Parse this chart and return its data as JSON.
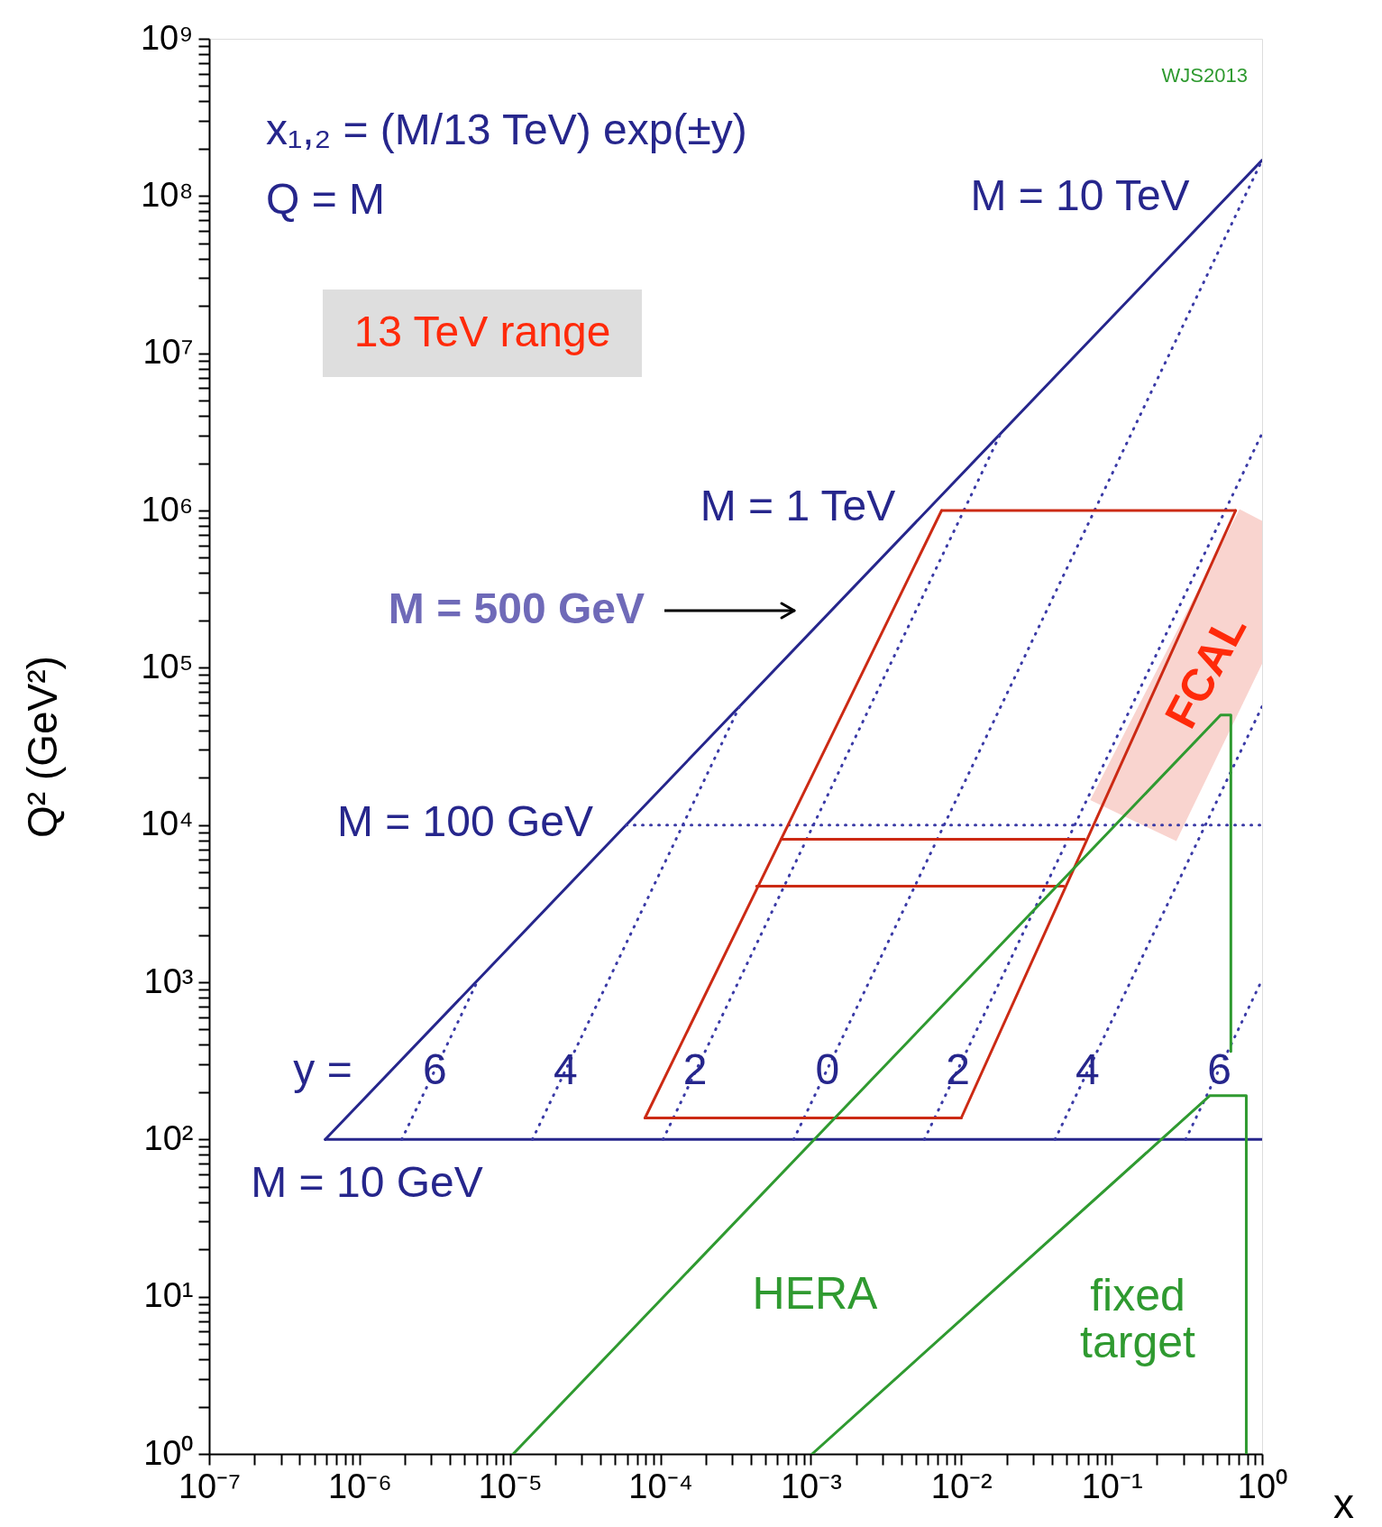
{
  "chart_data": {
    "type": "line",
    "xlabel": "x",
    "ylabel": "Q² (GeV²)",
    "log": "xy",
    "xlim": [
      1e-07,
      1
    ],
    "ylim": [
      1,
      1000000000.0
    ],
    "xticks": [
      {
        "value": 1e-07,
        "label": "10⁻⁷"
      },
      {
        "value": 2e-07,
        "label": null
      },
      {
        "value": 3e-07,
        "label": null
      },
      {
        "value": 4e-07,
        "label": null
      },
      {
        "value": 5e-07,
        "label": null
      },
      {
        "value": 6e-07,
        "label": null
      },
      {
        "value": 7e-07,
        "label": null
      },
      {
        "value": 8e-07,
        "label": null
      },
      {
        "value": 9e-07,
        "label": null
      },
      {
        "value": 1e-06,
        "label": "10⁻⁶"
      },
      {
        "value": 2e-06,
        "label": null
      },
      {
        "value": 3e-06,
        "label": null
      },
      {
        "value": 4e-06,
        "label": null
      },
      {
        "value": 5e-06,
        "label": null
      },
      {
        "value": 6e-06,
        "label": null
      },
      {
        "value": 7e-06,
        "label": null
      },
      {
        "value": 8e-06,
        "label": null
      },
      {
        "value": 9e-06,
        "label": null
      },
      {
        "value": 1e-05,
        "label": "10⁻⁵"
      },
      {
        "value": 2e-05,
        "label": null
      },
      {
        "value": 3e-05,
        "label": null
      },
      {
        "value": 4e-05,
        "label": null
      },
      {
        "value": 5e-05,
        "label": null
      },
      {
        "value": 6e-05,
        "label": null
      },
      {
        "value": 7e-05,
        "label": null
      },
      {
        "value": 8e-05,
        "label": null
      },
      {
        "value": 9e-05,
        "label": null
      },
      {
        "value": 0.0001,
        "label": "10⁻⁴"
      },
      {
        "value": 0.0002,
        "label": null
      },
      {
        "value": 0.0003,
        "label": null
      },
      {
        "value": 0.0004,
        "label": null
      },
      {
        "value": 0.0005,
        "label": null
      },
      {
        "value": 0.0006,
        "label": null
      },
      {
        "value": 0.0007,
        "label": null
      },
      {
        "value": 0.0008,
        "label": null
      },
      {
        "value": 0.0009,
        "label": null
      },
      {
        "value": 0.001,
        "label": "10⁻³"
      },
      {
        "value": 0.002,
        "label": null
      },
      {
        "value": 0.003,
        "label": null
      },
      {
        "value": 0.004,
        "label": null
      },
      {
        "value": 0.005,
        "label": null
      },
      {
        "value": 0.006,
        "label": null
      },
      {
        "value": 0.007,
        "label": null
      },
      {
        "value": 0.008,
        "label": null
      },
      {
        "value": 0.009,
        "label": null
      },
      {
        "value": 0.01,
        "label": "10⁻²"
      },
      {
        "value": 0.02,
        "label": null
      },
      {
        "value": 0.03,
        "label": null
      },
      {
        "value": 0.04,
        "label": null
      },
      {
        "value": 0.05,
        "label": null
      },
      {
        "value": 0.06,
        "label": null
      },
      {
        "value": 0.07,
        "label": null
      },
      {
        "value": 0.08,
        "label": null
      },
      {
        "value": 0.09,
        "label": null
      },
      {
        "value": 0.1,
        "label": "10⁻¹"
      },
      {
        "value": 0.2,
        "label": null
      },
      {
        "value": 0.3,
        "label": null
      },
      {
        "value": 0.4,
        "label": null
      },
      {
        "value": 0.5,
        "label": null
      },
      {
        "value": 0.6,
        "label": null
      },
      {
        "value": 0.7,
        "label": null
      },
      {
        "value": 0.8,
        "label": null
      },
      {
        "value": 0.9,
        "label": null
      },
      {
        "value": 1,
        "label": "10⁰"
      }
    ],
    "yticks": [
      {
        "value": 1,
        "label": "10⁰"
      },
      {
        "value": 2,
        "label": null
      },
      {
        "value": 3,
        "label": null
      },
      {
        "value": 4,
        "label": null
      },
      {
        "value": 5,
        "label": null
      },
      {
        "value": 6,
        "label": null
      },
      {
        "value": 7,
        "label": null
      },
      {
        "value": 8,
        "label": null
      },
      {
        "value": 9,
        "label": null
      },
      {
        "value": 10.0,
        "label": "10¹"
      },
      {
        "value": 20.0,
        "label": null
      },
      {
        "value": 30.0,
        "label": null
      },
      {
        "value": 40.0,
        "label": null
      },
      {
        "value": 50.0,
        "label": null
      },
      {
        "value": 60.0,
        "label": null
      },
      {
        "value": 70.0,
        "label": null
      },
      {
        "value": 80.0,
        "label": null
      },
      {
        "value": 90.0,
        "label": null
      },
      {
        "value": 100.0,
        "label": "10²"
      },
      {
        "value": 200.0,
        "label": null
      },
      {
        "value": 300.0,
        "label": null
      },
      {
        "value": 400.0,
        "label": null
      },
      {
        "value": 500.0,
        "label": null
      },
      {
        "value": 600.0,
        "label": null
      },
      {
        "value": 700.0,
        "label": null
      },
      {
        "value": 800.0,
        "label": null
      },
      {
        "value": 900.0,
        "label": null
      },
      {
        "value": 1000.0,
        "label": "10³"
      },
      {
        "value": 2000.0,
        "label": null
      },
      {
        "value": 3000.0,
        "label": null
      },
      {
        "value": 4000.0,
        "label": null
      },
      {
        "value": 5000.0,
        "label": null
      },
      {
        "value": 6000.0,
        "label": null
      },
      {
        "value": 7000.0,
        "label": null
      },
      {
        "value": 8000.0,
        "label": null
      },
      {
        "value": 9000.0,
        "label": null
      },
      {
        "value": 10000.0,
        "label": "10⁴"
      },
      {
        "value": 20000.0,
        "label": null
      },
      {
        "value": 30000.0,
        "label": null
      },
      {
        "value": 40000.0,
        "label": null
      },
      {
        "value": 50000.0,
        "label": null
      },
      {
        "value": 60000.0,
        "label": null
      },
      {
        "value": 70000.0,
        "label": null
      },
      {
        "value": 80000.0,
        "label": null
      },
      {
        "value": 90000.0,
        "label": null
      },
      {
        "value": 100000.0,
        "label": "10⁵"
      },
      {
        "value": 200000.0,
        "label": null
      },
      {
        "value": 300000.0,
        "label": null
      },
      {
        "value": 400000.0,
        "label": null
      },
      {
        "value": 500000.0,
        "label": null
      },
      {
        "value": 600000.0,
        "label": null
      },
      {
        "value": 700000.0,
        "label": null
      },
      {
        "value": 800000.0,
        "label": null
      },
      {
        "value": 900000.0,
        "label": null
      },
      {
        "value": 1000000.0,
        "label": "10⁶"
      },
      {
        "value": 2000000.0,
        "label": null
      },
      {
        "value": 3000000.0,
        "label": null
      },
      {
        "value": 4000000.0,
        "label": null
      },
      {
        "value": 5000000.0,
        "label": null
      },
      {
        "value": 6000000.0,
        "label": null
      },
      {
        "value": 7000000.0,
        "label": null
      },
      {
        "value": 8000000.0,
        "label": null
      },
      {
        "value": 9000000.0,
        "label": null
      },
      {
        "value": 10000000.0,
        "label": "10⁷"
      },
      {
        "value": 20000000.0,
        "label": null
      },
      {
        "value": 30000000.0,
        "label": null
      },
      {
        "value": 40000000.0,
        "label": null
      },
      {
        "value": 50000000.0,
        "label": null
      },
      {
        "value": 60000000.0,
        "label": null
      },
      {
        "value": 70000000.0,
        "label": null
      },
      {
        "value": 80000000.0,
        "label": null
      },
      {
        "value": 90000000.0,
        "label": null
      },
      {
        "value": 100000000.0,
        "label": "10⁸"
      },
      {
        "value": 200000000.0,
        "label": null
      },
      {
        "value": 300000000.0,
        "label": null
      },
      {
        "value": 400000000.0,
        "label": null
      },
      {
        "value": 500000000.0,
        "label": null
      },
      {
        "value": 600000000.0,
        "label": null
      },
      {
        "value": 700000000.0,
        "label": null
      },
      {
        "value": 800000000.0,
        "label": null
      },
      {
        "value": 900000000.0,
        "label": null
      },
      {
        "value": 1000000000.0,
        "label": "10⁹"
      }
    ],
    "series": [
      {
        "type": "area",
        "color": "#f9d4cf",
        "x": [
          0.708,
          1,
          1,
          0.269,
          0.072
        ],
        "values": [
          1020000.0,
          860000.0,
          106000.0,
          7900.0,
          14400.0
        ]
      },
      {
        "color": "#26268c",
        "line_style": "solid",
        "x": [
          5.917e-07,
          1
        ],
        "values": [
          100,
          169000000.0
        ]
      },
      {
        "color": "#26268c",
        "line_style": "solid",
        "x": [
          5.917e-07,
          1
        ],
        "values": [
          100,
          100
        ]
      },
      {
        "color": "#3a3aa6",
        "line_style": "dotted",
        "x": [
          1.907e-06,
          6.144e-06
        ],
        "values": [
          100,
          1038
        ]
      },
      {
        "color": "#3a3aa6",
        "line_style": "dotted",
        "x": [
          1.409e-05,
          0.0003355
        ],
        "values": [
          100,
          56700.0
        ]
      },
      {
        "color": "#3a3aa6",
        "line_style": "dotted",
        "x": [
          0.0001041,
          0.0183
        ],
        "values": [
          100,
          3095000.0
        ]
      },
      {
        "color": "#3a3aa6",
        "line_style": "dotted",
        "x": [
          0.0007692,
          1
        ],
        "values": [
          100,
          169000000.0
        ]
      },
      {
        "color": "#3a3aa6",
        "line_style": "dotted",
        "x": [
          0.005684,
          1
        ],
        "values": [
          100,
          3095000.0
        ]
      },
      {
        "color": "#3a3aa6",
        "line_style": "dotted",
        "x": [
          0.042,
          1
        ],
        "values": [
          100,
          56700.0
        ]
      },
      {
        "color": "#3a3aa6",
        "line_style": "dotted",
        "x": [
          0.3103,
          1
        ],
        "values": [
          100,
          1038
        ]
      },
      {
        "color": "#3a3aa6",
        "line_style": "dotted",
        "x": [
          5.917e-05,
          1
        ],
        "values": [
          10000.0,
          10000.0
        ]
      },
      {
        "color": "#cc2a14",
        "line_style": "solid",
        "x": [
          0.0074,
          0.667
        ],
        "values": [
          1000000.0,
          1000000.0
        ]
      },
      {
        "color": "#cc2a14",
        "line_style": "solid",
        "x": [
          0.01,
          0.667
        ],
        "values": [
          137,
          1000000.0
        ]
      },
      {
        "color": "#cc2a14",
        "line_style": "solid",
        "x": [
          7.9e-05,
          0.01
        ],
        "values": [
          137,
          137
        ]
      },
      {
        "color": "#cc2a14",
        "line_style": "solid",
        "x": [
          7.9e-05,
          0.0074
        ],
        "values": [
          137,
          1000000.0
        ]
      },
      {
        "color": "#cc2a14",
        "line_style": "solid",
        "x": [
          0.000635,
          0.066
        ],
        "values": [
          8100,
          8100
        ]
      },
      {
        "color": "#cc2a14",
        "line_style": "solid",
        "x": [
          0.000436,
          0.048
        ],
        "values": [
          4080,
          4080
        ]
      },
      {
        "color": "#2f9a30",
        "line_style": "solid",
        "x": [
          1.05e-05,
          0.53,
          0.62,
          0.62
        ],
        "values": [
          1,
          50000.0,
          50000.0,
          363
        ]
      },
      {
        "color": "#2f9a30",
        "line_style": "solid",
        "x": [
          0.00102,
          0.45,
          0.785,
          0.785
        ],
        "values": [
          1,
          190,
          190,
          1
        ]
      }
    ],
    "annotations": [
      "x₁,₂ = (M/13 TeV) exp(±y)",
      "Q = M",
      "13 TeV range",
      "WJS2013",
      "M = 10 TeV",
      "M = 1 TeV",
      "M = 500 GeV",
      "M = 100 GeV",
      "M = 10 GeV",
      "y =",
      "HERA",
      "fixed\ntarget",
      "FCAL",
      {
        "text": "6",
        "x": 3.16e-06,
        "y": 270
      },
      {
        "text": "4",
        "x": 2.34e-05,
        "y": 270
      },
      {
        "text": "2",
        "x": 0.00017,
        "y": 270
      },
      {
        "text": "0",
        "x": 0.00129,
        "y": 270
      },
      {
        "text": "2",
        "x": 0.0095,
        "y": 270
      },
      {
        "text": "4",
        "x": 0.069,
        "y": 270
      },
      {
        "text": "6",
        "x": 0.52,
        "y": 270
      }
    ]
  }
}
